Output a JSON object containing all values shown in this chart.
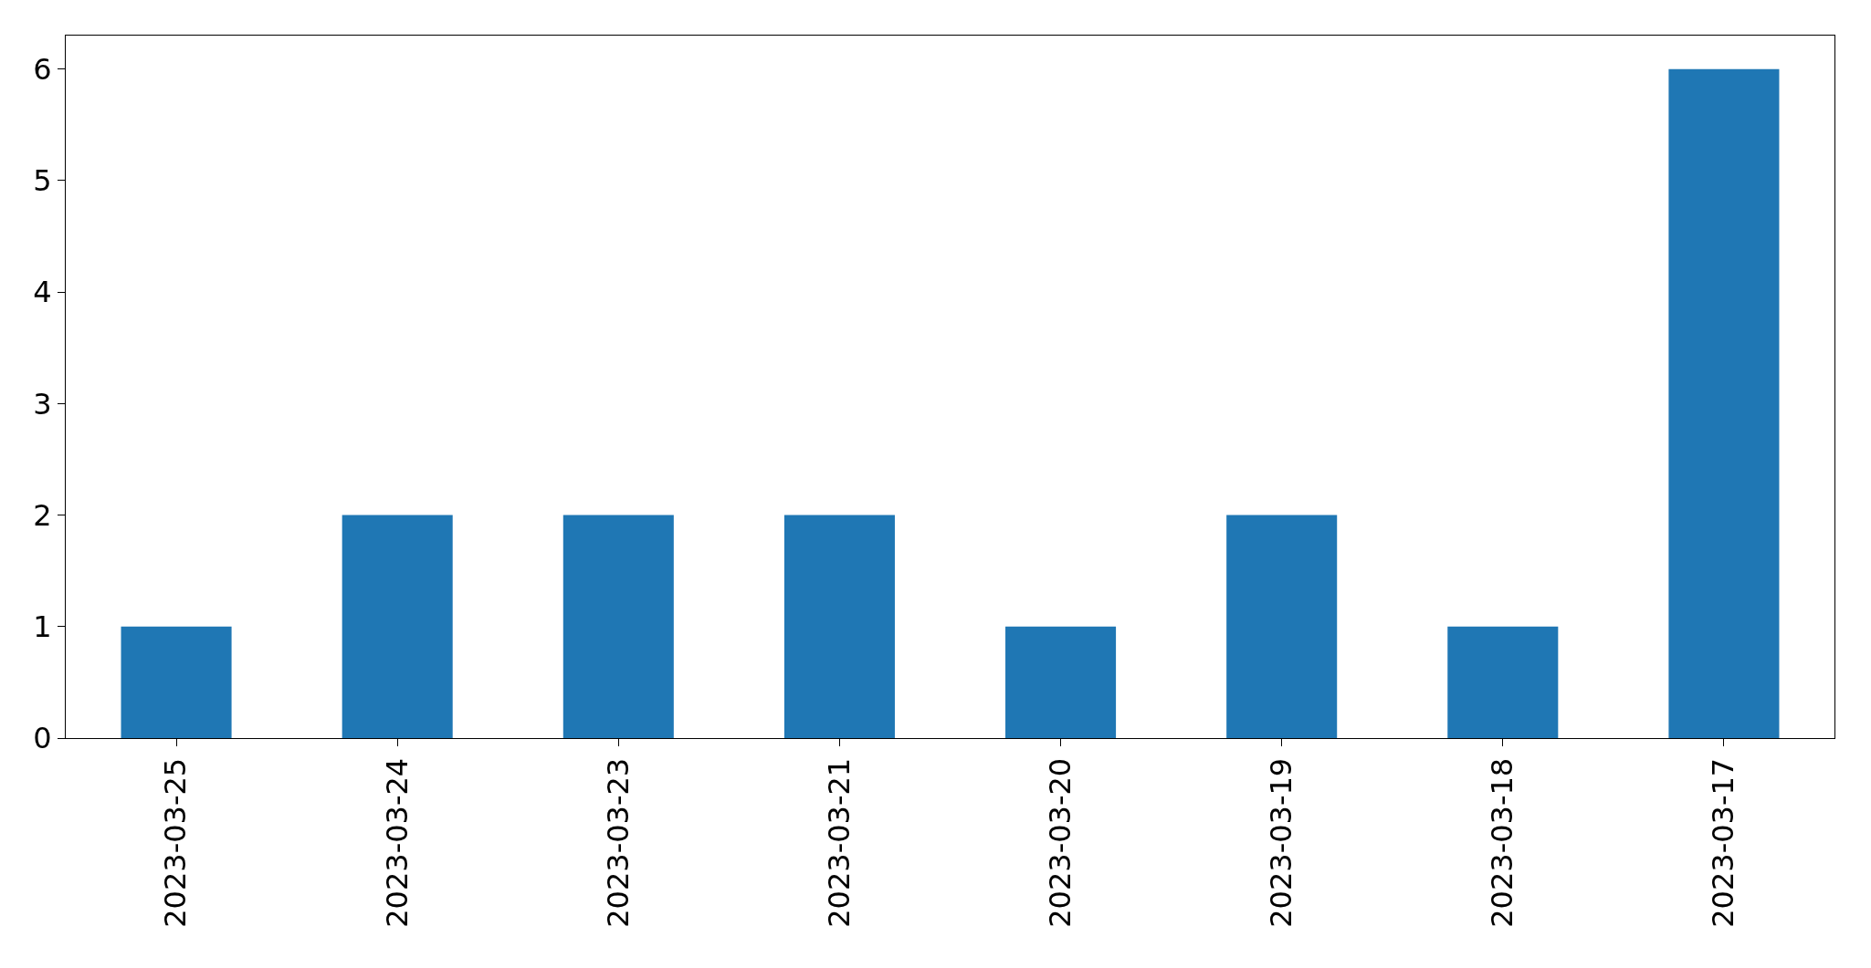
{
  "chart_data": {
    "type": "bar",
    "categories": [
      "2023-03-25",
      "2023-03-24",
      "2023-03-23",
      "2023-03-21",
      "2023-03-20",
      "2023-03-19",
      "2023-03-18",
      "2023-03-17"
    ],
    "values": [
      1,
      2,
      2,
      2,
      1,
      2,
      1,
      6
    ],
    "color": "#1f77b4",
    "ylim": [
      0,
      6.3
    ],
    "yticks": [
      0,
      1,
      2,
      3,
      4,
      5,
      6
    ]
  }
}
